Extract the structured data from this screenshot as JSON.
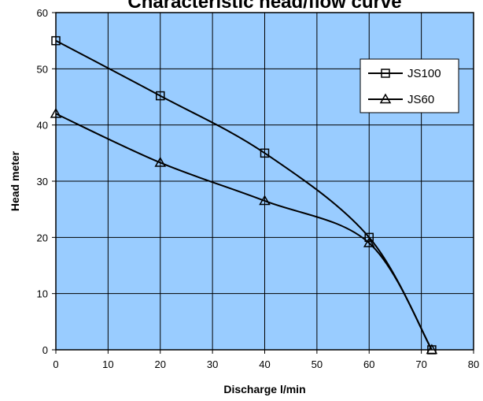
{
  "chart_data": {
    "type": "line",
    "title": "Characteristic head/flow curve",
    "xlabel": "Discharge l/min",
    "ylabel": "Head meter",
    "xlim": [
      0,
      80
    ],
    "ylim": [
      0,
      60
    ],
    "xticks": [
      0,
      10,
      20,
      30,
      40,
      50,
      60,
      70,
      80
    ],
    "yticks": [
      0,
      10,
      20,
      30,
      40,
      50,
      60
    ],
    "grid": true,
    "legend_position": "top-right",
    "plot_background": "#99ccff",
    "series": [
      {
        "name": "JS100",
        "marker": "square",
        "x": [
          0,
          20,
          40,
          60,
          72
        ],
        "y": [
          55,
          45.2,
          35,
          20,
          0
        ]
      },
      {
        "name": "JS60",
        "marker": "triangle",
        "x": [
          0,
          20,
          40,
          60,
          72
        ],
        "y": [
          42,
          33.3,
          26.5,
          19,
          0
        ]
      }
    ]
  }
}
